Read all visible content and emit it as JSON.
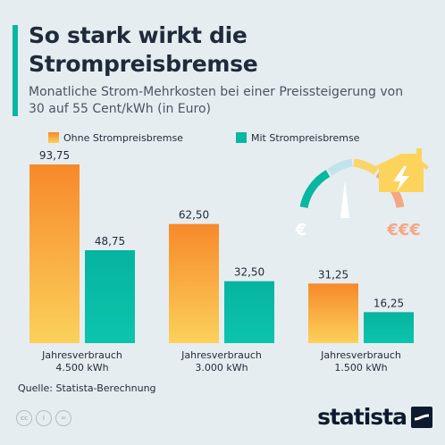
{
  "header": {
    "title": "So stark wirkt die Strompreisbremse",
    "subtitle": "Monatliche Strom-Mehrkosten bei einer Preissteigerung von 30 auf 55 Cent/kWh (in Euro)"
  },
  "footer": {
    "source": "Quelle: Statista-Berechnung",
    "brand": "statista",
    "license_icons": [
      "cc-icon",
      "person-icon",
      "equals-icon"
    ]
  },
  "illustration": {
    "gauge_left_label": "€",
    "gauge_right_label": "€€€",
    "house_icon": "house-lightning-icon"
  },
  "colors": {
    "accent": "#08b7a2",
    "ohne": "#f79a2e",
    "mit": "#08b7a2",
    "text_dark": "#1f2a3a",
    "background": "#e6edf0"
  },
  "chart_data": {
    "type": "bar",
    "title": "So stark wirkt die Strompreisbremse",
    "categories": [
      [
        "Jahresverbrauch",
        "4.500 kWh"
      ],
      [
        "Jahresverbrauch",
        "3.000 kWh"
      ],
      [
        "Jahresverbrauch",
        "1.500 kWh"
      ]
    ],
    "series": [
      {
        "name": "Ohne Strompreisbremse",
        "values": [
          93.75,
          62.5,
          31.25
        ],
        "labels": [
          "93,75",
          "62,50",
          "31,25"
        ],
        "color": "#f79a2e"
      },
      {
        "name": "Mit Strompreisbremse",
        "values": [
          48.75,
          32.5,
          16.25
        ],
        "labels": [
          "48,75",
          "32,50",
          "16,25"
        ],
        "color": "#08b7a2"
      }
    ],
    "ylim": [
      0,
      93.75
    ],
    "grid": false,
    "legend": "top-center",
    "y_axis_visible": false
  }
}
